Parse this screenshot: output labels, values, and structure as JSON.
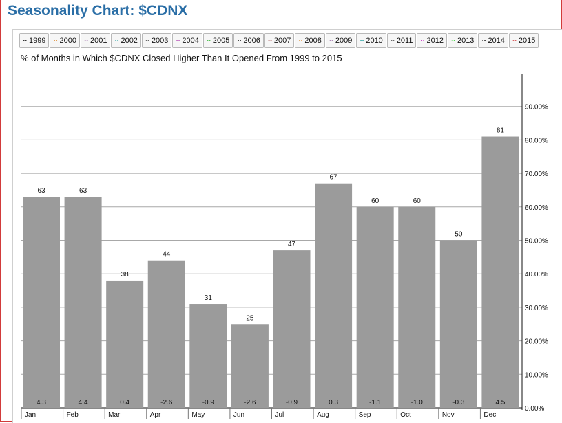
{
  "page": {
    "title": "Seasonality Chart: $CDNX"
  },
  "legend": {
    "items": [
      {
        "label": "1999",
        "color": "#000000"
      },
      {
        "label": "2000",
        "color": "#e08a2c"
      },
      {
        "label": "2001",
        "color": "#9b6ea8"
      },
      {
        "label": "2002",
        "color": "#1a9e9e"
      },
      {
        "label": "2003",
        "color": "#444444"
      },
      {
        "label": "2004",
        "color": "#b44bb4"
      },
      {
        "label": "2005",
        "color": "#2fb52f"
      },
      {
        "label": "2006",
        "color": "#000000"
      },
      {
        "label": "2007",
        "color": "#8b1a1a"
      },
      {
        "label": "2008",
        "color": "#e08a2c"
      },
      {
        "label": "2009",
        "color": "#9b6ea8"
      },
      {
        "label": "2010",
        "color": "#1a9e9e"
      },
      {
        "label": "2011",
        "color": "#444444"
      },
      {
        "label": "2012",
        "color": "#c218c2"
      },
      {
        "label": "2013",
        "color": "#2fd02f"
      },
      {
        "label": "2014",
        "color": "#000000"
      },
      {
        "label": "2015",
        "color": "#d23b3b"
      }
    ]
  },
  "chart_data": {
    "type": "bar",
    "title": "% of Months in Which $CDNX Closed Higher Than It Opened From 1999 to 2015",
    "categories": [
      "Jan",
      "Feb",
      "Mar",
      "Apr",
      "May",
      "Jun",
      "Jul",
      "Aug",
      "Sep",
      "Oct",
      "Nov",
      "Dec"
    ],
    "series": [
      {
        "values": [
          63,
          63,
          38,
          44,
          31,
          25,
          47,
          67,
          60,
          60,
          50,
          81
        ]
      }
    ],
    "bottom_labels": [
      "4.3",
      "4.4",
      "0.4",
      "-2.6",
      "-0.9",
      "-2.6",
      "-0.9",
      "0.3",
      "-1.1",
      "-1.0",
      "-0.3",
      "4.5"
    ],
    "y_ticks": [
      "0.00%",
      "10.00%",
      "20.00%",
      "30.00%",
      "40.00%",
      "50.00%",
      "60.00%",
      "70.00%",
      "80.00%",
      "90.00%"
    ],
    "ylim": [
      0,
      100
    ],
    "grid": true,
    "bar_color": "#9b9b9b",
    "axis_position": "right"
  }
}
